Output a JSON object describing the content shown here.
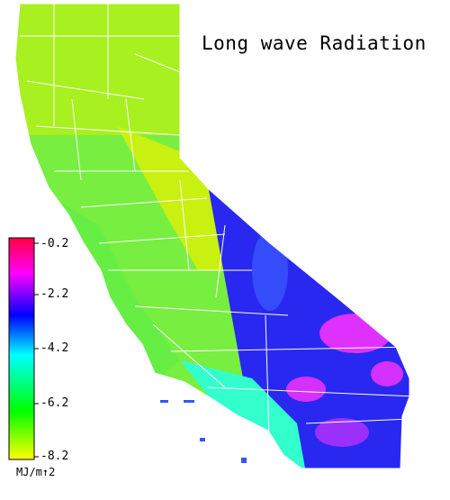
{
  "title": "Long wave Radiation",
  "colorbar": {
    "ticks": [
      "-0.2",
      "-2.2",
      "-4.2",
      "-6.2",
      "-8.2"
    ],
    "unit": "MJ/m↑2",
    "min": -8.2,
    "max": -0.2,
    "colors": [
      "#ffff00",
      "#00ff00",
      "#00ffff",
      "#0000ff",
      "#ff00ff",
      "#ff0040"
    ]
  },
  "map": {
    "region": "California",
    "fill_colors": {
      "north_coast": "#7cf03a",
      "north": "#a8f020",
      "sierra": "#c8f010",
      "central_valley": "#78ee40",
      "central_coast": "#66ee44",
      "desert": "#2828f0",
      "desert_hot": "#ff33ff",
      "south_coast": "#33ffcc"
    },
    "county_line_color": "#ffffff"
  }
}
